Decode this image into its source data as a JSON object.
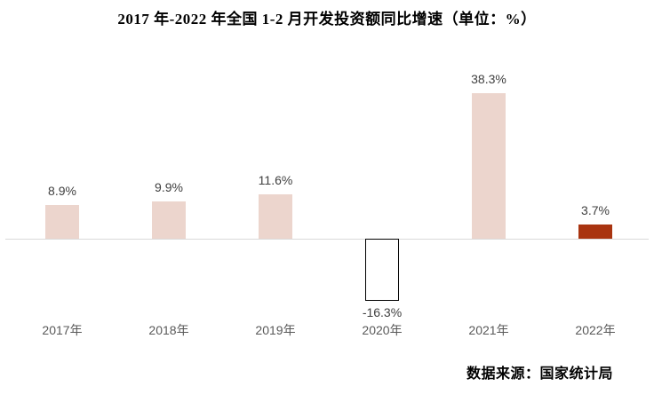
{
  "title": "2017 年-2022 年全国 1-2 月开发投资额同比增速（单位：%）",
  "source_note": "数据来源：国家统计局",
  "chart_data": {
    "type": "bar",
    "title": "2017 年-2022 年全国 1-2 月开发投资额同比增速（单位：%）",
    "xlabel": "",
    "ylabel": "",
    "unit": "%",
    "categories": [
      "2017年",
      "2018年",
      "2019年",
      "2020年",
      "2021年",
      "2022年"
    ],
    "values": [
      8.9,
      9.9,
      11.6,
      -16.3,
      38.3,
      3.7
    ],
    "data_labels": [
      "8.9%",
      "9.9%",
      "11.6%",
      "-16.3%",
      "38.3%",
      "3.7%"
    ],
    "ylim": [
      -20,
      42
    ],
    "grid": false,
    "legend_position": "none",
    "axis_color": "#d9d9d9",
    "data_label_color": "#404040",
    "category_label_color": "#595959",
    "bar_styles": [
      {
        "fill": "#ecd5cd",
        "border": "none"
      },
      {
        "fill": "#ecd5cd",
        "border": "none"
      },
      {
        "fill": "#ecd5cd",
        "border": "none"
      },
      {
        "fill": "#ffffff",
        "border": "1px solid #000000"
      },
      {
        "fill": "#ecd5cd",
        "border": "none"
      },
      {
        "fill": "#a93410",
        "border": "none"
      }
    ]
  }
}
